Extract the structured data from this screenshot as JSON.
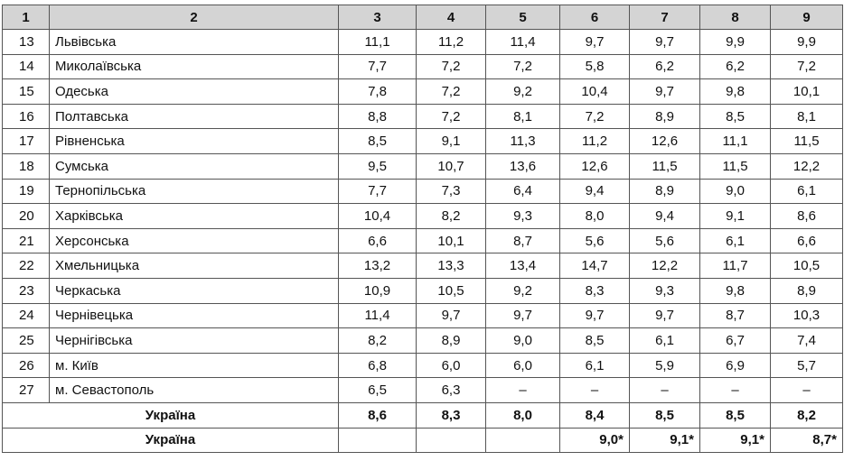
{
  "table": {
    "header": [
      "1",
      "2",
      "3",
      "4",
      "5",
      "6",
      "7",
      "8",
      "9"
    ],
    "rows": [
      [
        "13",
        "Львівська",
        "11,1",
        "11,2",
        "11,4",
        "9,7",
        "9,7",
        "9,9",
        "9,9"
      ],
      [
        "14",
        "Миколаївська",
        "7,7",
        "7,2",
        "7,2",
        "5,8",
        "6,2",
        "6,2",
        "7,2"
      ],
      [
        "15",
        "Одеська",
        "7,8",
        "7,2",
        "9,2",
        "10,4",
        "9,7",
        "9,8",
        "10,1"
      ],
      [
        "16",
        "Полтавська",
        "8,8",
        "7,2",
        "8,1",
        "7,2",
        "8,9",
        "8,5",
        "8,1"
      ],
      [
        "17",
        "Рівненська",
        "8,5",
        "9,1",
        "11,3",
        "11,2",
        "12,6",
        "11,1",
        "11,5"
      ],
      [
        "18",
        "Сумська",
        "9,5",
        "10,7",
        "13,6",
        "12,6",
        "11,5",
        "11,5",
        "12,2"
      ],
      [
        "19",
        "Тернопільська",
        "7,7",
        "7,3",
        "6,4",
        "9,4",
        "8,9",
        "9,0",
        "6,1"
      ],
      [
        "20",
        "Харківська",
        "10,4",
        "8,2",
        "9,3",
        "8,0",
        "9,4",
        "9,1",
        "8,6"
      ],
      [
        "21",
        "Херсонська",
        "6,6",
        "10,1",
        "8,7",
        "5,6",
        "5,6",
        "6,1",
        "6,6"
      ],
      [
        "22",
        "Хмельницька",
        "13,2",
        "13,3",
        "13,4",
        "14,7",
        "12,2",
        "11,7",
        "10,5"
      ],
      [
        "23",
        "Черкаська",
        "10,9",
        "10,5",
        "9,2",
        "8,3",
        "9,3",
        "9,8",
        "8,9"
      ],
      [
        "24",
        "Чернівецька",
        "11,4",
        "9,7",
        "9,7",
        "9,7",
        "9,7",
        "8,7",
        "10,3"
      ],
      [
        "25",
        "Чернігівська",
        "8,2",
        "8,9",
        "9,0",
        "8,5",
        "6,1",
        "6,7",
        "7,4"
      ],
      [
        "26",
        "м. Київ",
        "6,8",
        "6,0",
        "6,0",
        "6,1",
        "5,9",
        "6,9",
        "5,7"
      ],
      [
        "27",
        "м. Севастополь",
        "6,5",
        "6,3",
        "–",
        "–",
        "–",
        "–",
        "–"
      ]
    ],
    "summary": [
      {
        "label": "Україна",
        "values": [
          "8,6",
          "8,3",
          "8,0",
          "8,4",
          "8,5",
          "8,5",
          "8,2"
        ]
      },
      {
        "label": "Україна",
        "values": [
          "9,0*",
          "9,1*",
          "9,1*",
          "8,7*"
        ]
      }
    ]
  }
}
